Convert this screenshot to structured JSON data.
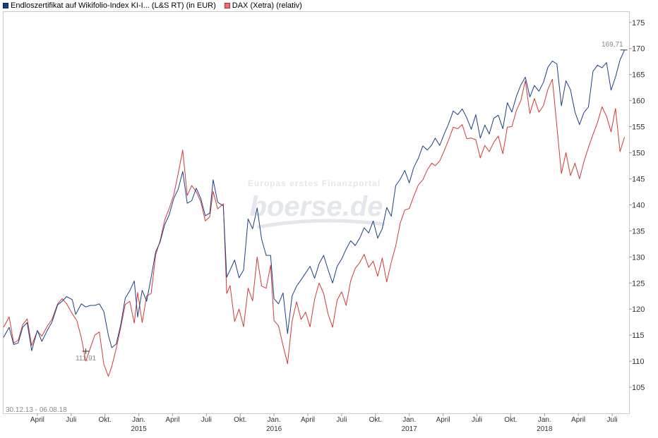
{
  "legend": {
    "series1_label": "Endloszertifikat auf Wikifolio-Index KI-I... (L&S RT) (in EUR)",
    "series2_label": "DAX (Xetra) (relativ)"
  },
  "date_range": "30.12.13 - 06.08.18",
  "watermark": {
    "line1": "Europas erstes Finanzportal",
    "brand": "boerse.de"
  },
  "annotations": {
    "min": {
      "label": "111,91",
      "x": 7.3,
      "y": 111.91
    },
    "max": {
      "label": "169,71",
      "x": 55.1,
      "y": 169.71
    }
  },
  "chart_data": {
    "type": "line",
    "xlabel": "",
    "ylabel": "",
    "xlim": [
      0,
      55.5
    ],
    "ylim": [
      100,
      177
    ],
    "y_ticks": [
      105,
      110,
      115,
      120,
      125,
      130,
      135,
      140,
      145,
      150,
      155,
      160,
      165,
      170,
      175
    ],
    "x_ticks": [
      {
        "label": "April",
        "x": 3
      },
      {
        "label": "Juli",
        "x": 6
      },
      {
        "label": "Okt.",
        "x": 9
      },
      {
        "label": "Jan.",
        "year": "2015",
        "x": 12
      },
      {
        "label": "April",
        "x": 15
      },
      {
        "label": "Juli",
        "x": 18
      },
      {
        "label": "Okt.",
        "x": 21
      },
      {
        "label": "Jan.",
        "year": "2016",
        "x": 24
      },
      {
        "label": "April",
        "x": 27
      },
      {
        "label": "Juli",
        "x": 30
      },
      {
        "label": "Okt.",
        "x": 33
      },
      {
        "label": "Jan.",
        "year": "2017",
        "x": 36
      },
      {
        "label": "April",
        "x": 39
      },
      {
        "label": "Juli",
        "x": 42
      },
      {
        "label": "Okt.",
        "x": 45
      },
      {
        "label": "Jan.",
        "year": "2018",
        "x": 48
      },
      {
        "label": "April",
        "x": 51
      },
      {
        "label": "Juli",
        "x": 54
      }
    ],
    "grid": false,
    "legend_position": "top-left",
    "series": [
      {
        "name": "Endloszertifikat auf Wikifolio-Index KI-I... (L&S RT) (in EUR)",
        "color": "#1c3f86",
        "points": [
          [
            0,
            114.6
          ],
          [
            0.5,
            116.5
          ],
          [
            0.9,
            113.2
          ],
          [
            1.3,
            113.5
          ],
          [
            1.7,
            116.5
          ],
          [
            2.1,
            117.4
          ],
          [
            2.5,
            112.0
          ],
          [
            3.0,
            115.9
          ],
          [
            3.4,
            113.8
          ],
          [
            3.9,
            116.0
          ],
          [
            4.3,
            117.5
          ],
          [
            4.8,
            120.8
          ],
          [
            5.2,
            121.5
          ],
          [
            5.6,
            122.4
          ],
          [
            6.1,
            121.8
          ],
          [
            6.4,
            119.0
          ],
          [
            6.9,
            121.0
          ],
          [
            7.3,
            120.4
          ],
          [
            7.7,
            120.7
          ],
          [
            8.1,
            120.7
          ],
          [
            8.5,
            121.0
          ],
          [
            8.9,
            119.5
          ],
          [
            9.3,
            115.0
          ],
          [
            9.6,
            112.6
          ],
          [
            10.0,
            113.3
          ],
          [
            10.4,
            117.0
          ],
          [
            10.8,
            122.1
          ],
          [
            11.2,
            123.5
          ],
          [
            11.6,
            125.4
          ],
          [
            11.9,
            118.5
          ],
          [
            12.3,
            123.6
          ],
          [
            12.7,
            121.5
          ],
          [
            13.1,
            126.1
          ],
          [
            13.5,
            131.0
          ],
          [
            13.9,
            132.9
          ],
          [
            14.3,
            136.2
          ],
          [
            14.7,
            138.1
          ],
          [
            15.1,
            141.2
          ],
          [
            15.5,
            143.0
          ],
          [
            15.9,
            146.4
          ],
          [
            16.3,
            140.3
          ],
          [
            16.7,
            140.8
          ],
          [
            17.1,
            143.2
          ],
          [
            17.5,
            141.2
          ],
          [
            17.9,
            137.9
          ],
          [
            18.3,
            138.4
          ],
          [
            18.6,
            144.8
          ],
          [
            19.0,
            140.5
          ],
          [
            19.5,
            139.8
          ],
          [
            19.8,
            126.1
          ],
          [
            20.1,
            127.5
          ],
          [
            20.5,
            129.4
          ],
          [
            20.9,
            126.0
          ],
          [
            21.3,
            127.5
          ],
          [
            21.7,
            137.3
          ],
          [
            22.1,
            135.4
          ],
          [
            22.5,
            139.4
          ],
          [
            22.9,
            133.4
          ],
          [
            23.3,
            130.3
          ],
          [
            23.7,
            130.3
          ],
          [
            24.0,
            122.0
          ],
          [
            24.4,
            121.0
          ],
          [
            24.8,
            123.1
          ],
          [
            25.2,
            115.3
          ],
          [
            25.6,
            122.5
          ],
          [
            26.0,
            124.4
          ],
          [
            26.4,
            125.6
          ],
          [
            26.8,
            126.9
          ],
          [
            27.2,
            128.2
          ],
          [
            27.6,
            125.9
          ],
          [
            28.0,
            128.7
          ],
          [
            28.4,
            130.3
          ],
          [
            28.8,
            127.5
          ],
          [
            29.2,
            125.0
          ],
          [
            29.6,
            128.2
          ],
          [
            30.0,
            129.6
          ],
          [
            30.4,
            131.5
          ],
          [
            30.8,
            133.1
          ],
          [
            31.2,
            132.2
          ],
          [
            31.6,
            133.6
          ],
          [
            32.0,
            135.6
          ],
          [
            32.4,
            134.6
          ],
          [
            32.8,
            136.9
          ],
          [
            33.2,
            133.6
          ],
          [
            33.6,
            135.4
          ],
          [
            34.0,
            139.5
          ],
          [
            34.4,
            137.8
          ],
          [
            34.8,
            143.7
          ],
          [
            35.2,
            144.9
          ],
          [
            35.6,
            146.6
          ],
          [
            36.0,
            144.2
          ],
          [
            36.4,
            147.2
          ],
          [
            36.8,
            148.9
          ],
          [
            37.2,
            151.3
          ],
          [
            37.6,
            150.5
          ],
          [
            38.0,
            151.5
          ],
          [
            38.3,
            152.8
          ],
          [
            38.7,
            151.4
          ],
          [
            39.1,
            153.6
          ],
          [
            39.5,
            155.6
          ],
          [
            39.9,
            158.0
          ],
          [
            40.3,
            157.3
          ],
          [
            40.7,
            158.4
          ],
          [
            41.1,
            156.7
          ],
          [
            41.5,
            154.5
          ],
          [
            41.9,
            157.3
          ],
          [
            42.3,
            152.8
          ],
          [
            42.7,
            155.3
          ],
          [
            43.1,
            153.6
          ],
          [
            43.5,
            156.6
          ],
          [
            43.9,
            157.2
          ],
          [
            44.3,
            154.6
          ],
          [
            44.7,
            159.6
          ],
          [
            45.1,
            157.8
          ],
          [
            45.5,
            160.8
          ],
          [
            45.9,
            163.0
          ],
          [
            46.3,
            164.5
          ],
          [
            46.7,
            160.7
          ],
          [
            47.1,
            162.9
          ],
          [
            47.5,
            161.8
          ],
          [
            47.9,
            163.5
          ],
          [
            48.3,
            166.4
          ],
          [
            48.7,
            167.6
          ],
          [
            49.1,
            167.0
          ],
          [
            49.5,
            159.0
          ],
          [
            49.9,
            163.8
          ],
          [
            50.3,
            162.1
          ],
          [
            50.7,
            157.8
          ],
          [
            51.1,
            155.4
          ],
          [
            51.5,
            157.7
          ],
          [
            51.9,
            158.8
          ],
          [
            52.3,
            165.6
          ],
          [
            52.7,
            166.8
          ],
          [
            53.1,
            166.3
          ],
          [
            53.5,
            167.3
          ],
          [
            53.9,
            162.0
          ],
          [
            54.3,
            164.5
          ],
          [
            54.7,
            167.8
          ],
          [
            55.1,
            169.7
          ]
        ]
      },
      {
        "name": "DAX (Xetra) (relativ)",
        "color": "#cf3a3a",
        "points": [
          [
            0,
            116.5
          ],
          [
            0.5,
            118.5
          ],
          [
            0.9,
            113.5
          ],
          [
            1.3,
            114.0
          ],
          [
            1.7,
            117.0
          ],
          [
            2.1,
            118.1
          ],
          [
            2.5,
            113.0
          ],
          [
            3.0,
            115.8
          ],
          [
            3.4,
            114.8
          ],
          [
            3.9,
            116.8
          ],
          [
            4.3,
            118.0
          ],
          [
            4.8,
            121.0
          ],
          [
            5.2,
            122.0
          ],
          [
            5.6,
            121.0
          ],
          [
            6.1,
            119.1
          ],
          [
            6.5,
            117.8
          ],
          [
            6.9,
            114.5
          ],
          [
            7.3,
            110.0
          ],
          [
            7.7,
            112.5
          ],
          [
            8.1,
            115.0
          ],
          [
            8.5,
            115.6
          ],
          [
            8.9,
            109.4
          ],
          [
            9.3,
            107.1
          ],
          [
            9.6,
            109.0
          ],
          [
            10.0,
            112.4
          ],
          [
            10.4,
            116.5
          ],
          [
            10.8,
            120.9
          ],
          [
            11.2,
            121.5
          ],
          [
            11.6,
            117.3
          ],
          [
            11.9,
            123.2
          ],
          [
            12.3,
            117.4
          ],
          [
            12.7,
            122.5
          ],
          [
            13.1,
            123.0
          ],
          [
            13.5,
            130.4
          ],
          [
            13.9,
            133.2
          ],
          [
            14.3,
            137.1
          ],
          [
            14.7,
            139.3
          ],
          [
            15.1,
            141.9
          ],
          [
            15.5,
            146.0
          ],
          [
            15.9,
            150.5
          ],
          [
            16.3,
            141.8
          ],
          [
            16.7,
            143.7
          ],
          [
            17.1,
            142.5
          ],
          [
            17.5,
            140.6
          ],
          [
            17.9,
            136.9
          ],
          [
            18.3,
            137.7
          ],
          [
            18.6,
            142.6
          ],
          [
            19.0,
            139.2
          ],
          [
            19.5,
            140.2
          ],
          [
            19.8,
            123.0
          ],
          [
            20.1,
            124.5
          ],
          [
            20.5,
            117.6
          ],
          [
            20.9,
            120.0
          ],
          [
            21.3,
            116.6
          ],
          [
            21.7,
            124.0
          ],
          [
            22.1,
            121.6
          ],
          [
            22.5,
            130.0
          ],
          [
            22.9,
            124.4
          ],
          [
            23.3,
            124.0
          ],
          [
            23.7,
            128.4
          ],
          [
            24.0,
            117.8
          ],
          [
            24.4,
            116.8
          ],
          [
            24.8,
            113.0
          ],
          [
            25.2,
            109.5
          ],
          [
            25.6,
            117.7
          ],
          [
            26.0,
            121.4
          ],
          [
            26.4,
            118.0
          ],
          [
            26.8,
            119.4
          ],
          [
            27.2,
            116.6
          ],
          [
            27.6,
            121.9
          ],
          [
            28.0,
            125.0
          ],
          [
            28.4,
            123.0
          ],
          [
            28.8,
            119.0
          ],
          [
            29.2,
            116.5
          ],
          [
            29.6,
            121.7
          ],
          [
            30.0,
            123.3
          ],
          [
            30.4,
            120.7
          ],
          [
            30.8,
            125.4
          ],
          [
            31.2,
            127.8
          ],
          [
            31.6,
            128.9
          ],
          [
            32.0,
            130.5
          ],
          [
            32.4,
            128.0
          ],
          [
            32.8,
            129.2
          ],
          [
            33.2,
            126.3
          ],
          [
            33.6,
            129.8
          ],
          [
            34.0,
            125.2
          ],
          [
            34.4,
            129.0
          ],
          [
            34.8,
            132.1
          ],
          [
            35.2,
            136.5
          ],
          [
            35.6,
            139.0
          ],
          [
            36.0,
            139.3
          ],
          [
            36.4,
            141.7
          ],
          [
            36.8,
            143.8
          ],
          [
            37.2,
            144.8
          ],
          [
            37.6,
            146.7
          ],
          [
            38.0,
            148.0
          ],
          [
            38.3,
            147.5
          ],
          [
            38.7,
            148.4
          ],
          [
            39.1,
            150.4
          ],
          [
            39.5,
            152.5
          ],
          [
            39.9,
            154.9
          ],
          [
            40.3,
            154.6
          ],
          [
            40.7,
            155.4
          ],
          [
            41.1,
            152.7
          ],
          [
            41.5,
            152.8
          ],
          [
            41.9,
            152.5
          ],
          [
            42.3,
            149.0
          ],
          [
            42.7,
            151.4
          ],
          [
            43.1,
            150.2
          ],
          [
            43.5,
            152.0
          ],
          [
            43.9,
            153.2
          ],
          [
            44.3,
            149.8
          ],
          [
            44.7,
            154.9
          ],
          [
            45.1,
            155.0
          ],
          [
            45.5,
            158.1
          ],
          [
            45.9,
            160.0
          ],
          [
            46.3,
            163.8
          ],
          [
            46.7,
            157.5
          ],
          [
            47.1,
            160.4
          ],
          [
            47.5,
            157.8
          ],
          [
            47.9,
            159.0
          ],
          [
            48.3,
            162.2
          ],
          [
            48.7,
            164.1
          ],
          [
            49.1,
            155.0
          ],
          [
            49.5,
            146.0
          ],
          [
            49.9,
            150.0
          ],
          [
            50.3,
            145.6
          ],
          [
            50.7,
            148.0
          ],
          [
            51.1,
            145.0
          ],
          [
            51.5,
            148.3
          ],
          [
            51.9,
            151.0
          ],
          [
            52.3,
            153.5
          ],
          [
            52.7,
            155.8
          ],
          [
            53.1,
            158.8
          ],
          [
            53.5,
            157.0
          ],
          [
            53.9,
            154.0
          ],
          [
            54.3,
            158.5
          ],
          [
            54.7,
            150.2
          ],
          [
            55.1,
            153.0
          ]
        ]
      }
    ]
  }
}
